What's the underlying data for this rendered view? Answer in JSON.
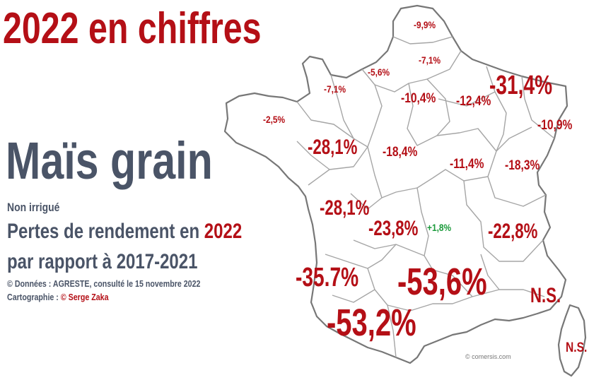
{
  "title": "2022 en chiffres",
  "crop": "Maïs grain",
  "subtitle_irrigation": "Non irrigué",
  "subtitle_line1_prefix": "Pertes de rendement en ",
  "subtitle_line1_year": "2022",
  "subtitle_line2": "par rapport à 2017-2021",
  "source_text": "© Données : AGRESTE, consulté le 15 novembre 2022",
  "cartography_prefix": "Cartographie : ",
  "cartography_author": "© Serge Zaka",
  "map_credit": "© comersis.com",
  "colors": {
    "accent": "#b40f16",
    "text": "#4a5467",
    "positive": "#1a9a3a",
    "border": "#777777"
  },
  "regions": [
    {
      "id": "nord",
      "value": "-9,9%"
    },
    {
      "id": "aisne",
      "value": "-7,1%"
    },
    {
      "id": "seine-maritime",
      "value": "-5,6%"
    },
    {
      "id": "manche",
      "value": "-7,1%"
    },
    {
      "id": "ile-de-france",
      "value": "-10,4%"
    },
    {
      "id": "marne",
      "value": "-12,4%"
    },
    {
      "id": "lorraine",
      "value": "-31,4%"
    },
    {
      "id": "alsace",
      "value": "-10,9%"
    },
    {
      "id": "bretagne",
      "value": "-2,5%"
    },
    {
      "id": "pays-de-la-loire",
      "value": "-28,1%"
    },
    {
      "id": "centre",
      "value": "-18,4%"
    },
    {
      "id": "bourgogne",
      "value": "-11,4%"
    },
    {
      "id": "franche-comte",
      "value": "-18,3%"
    },
    {
      "id": "poitou",
      "value": "-28,1%"
    },
    {
      "id": "limousin",
      "value": "-23,8%"
    },
    {
      "id": "auvergne",
      "value": "+1,8%"
    },
    {
      "id": "rhone-alpes",
      "value": "-22,8%"
    },
    {
      "id": "aquitaine",
      "value": "-35.7%"
    },
    {
      "id": "midi-pyrenees",
      "value": "-53,6%"
    },
    {
      "id": "provence",
      "value": "N.S."
    },
    {
      "id": "pyrenees",
      "value": "-53,2%"
    },
    {
      "id": "corse",
      "value": "N.S."
    }
  ]
}
